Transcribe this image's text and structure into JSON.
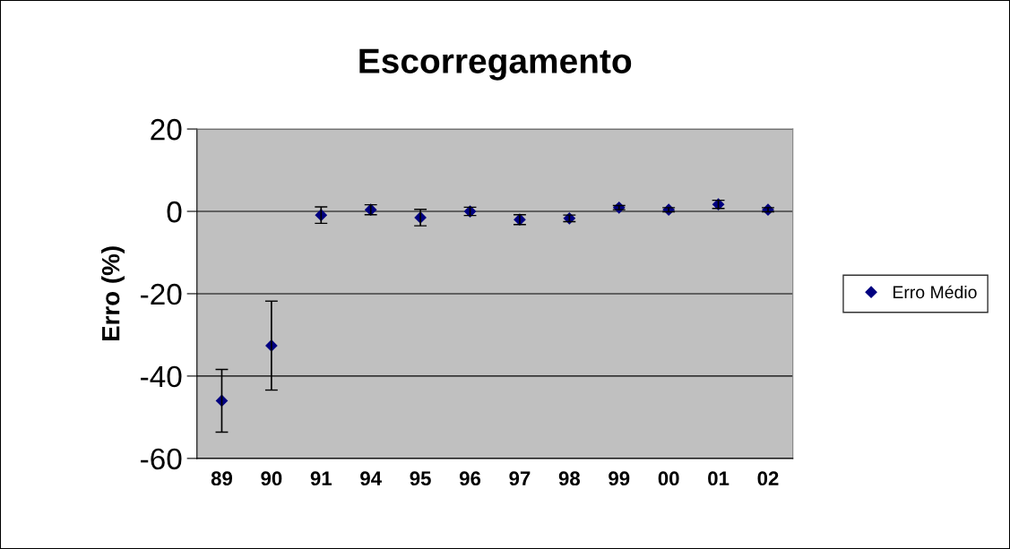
{
  "chart_data": {
    "type": "scatter",
    "title": "Escorregamento",
    "ylabel": "Erro (%)",
    "categories": [
      "89",
      "90",
      "91",
      "94",
      "95",
      "96",
      "97",
      "98",
      "99",
      "00",
      "01",
      "02"
    ],
    "series": [
      {
        "name": "Erro Médio",
        "color": "#000080",
        "values": [
          -46,
          -32.6,
          -0.9,
          0.4,
          -1.5,
          0,
          -2,
          -1.7,
          0.9,
          0.4,
          1.7,
          0.4
        ],
        "errors": [
          7.6,
          10.8,
          2,
          1.2,
          2,
          1,
          1.2,
          0.8,
          0.5,
          0.5,
          1,
          0.5
        ]
      }
    ],
    "ylim": [
      -60,
      20
    ],
    "yticks": [
      -60,
      -40,
      -20,
      0,
      20
    ],
    "grid": "y",
    "legend": "right",
    "marker": "diamond"
  }
}
